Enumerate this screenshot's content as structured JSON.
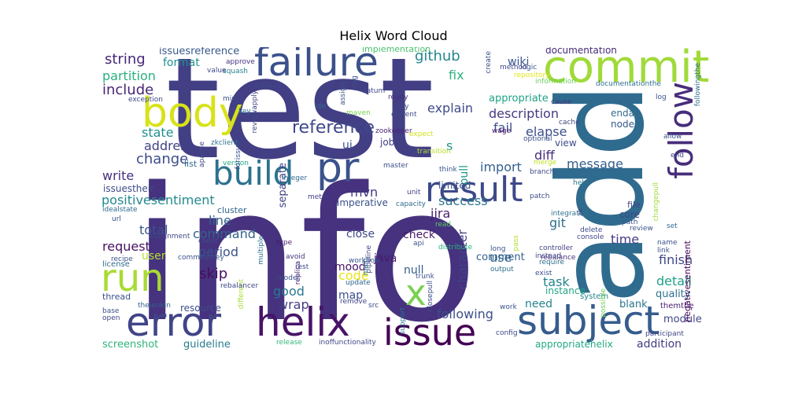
{
  "title": "Helix Word Cloud",
  "words": [
    {
      "text": "info",
      "color": "#46327e"
    },
    {
      "text": "test",
      "color": "#423f85"
    },
    {
      "text": "add",
      "color": "#2f6b8e"
    },
    {
      "text": "commit",
      "color": "#a0da39"
    },
    {
      "text": "failure",
      "color": "#3b518b"
    },
    {
      "text": "body",
      "color": "#d8e219"
    },
    {
      "text": "run",
      "color": "#a8db34"
    },
    {
      "text": "error",
      "color": "#414487"
    },
    {
      "text": "helix",
      "color": "#481467"
    },
    {
      "text": "subject",
      "color": "#365c8d"
    },
    {
      "text": "issue",
      "color": "#440154"
    },
    {
      "text": "result",
      "color": "#3e4989"
    },
    {
      "text": "build",
      "color": "#2c728e"
    },
    {
      "text": "pr",
      "color": "#3b528b"
    },
    {
      "text": "x",
      "color": "#7ad151"
    },
    {
      "text": "follow",
      "color": "#472d7b"
    },
    {
      "text": "reference",
      "color": "#3f4889"
    },
    {
      "text": "string",
      "color": "#482878"
    },
    {
      "text": "github",
      "color": "#24868e"
    },
    {
      "text": "documentation",
      "color": "#472a7a"
    },
    {
      "text": "include",
      "color": "#482475"
    },
    {
      "text": "partition",
      "color": "#2ab07f"
    },
    {
      "text": "state",
      "color": "#21908d"
    },
    {
      "text": "address",
      "color": "#414287"
    },
    {
      "text": "change",
      "color": "#3e4c8a"
    },
    {
      "text": "write",
      "color": "#46307e"
    },
    {
      "text": "positivesentiment",
      "color": "#23898e"
    },
    {
      "text": "description",
      "color": "#443a83"
    },
    {
      "text": "explain",
      "color": "#3e4a89"
    },
    {
      "text": "appropriate",
      "color": "#1fa287"
    },
    {
      "text": "fix",
      "color": "#2db27d"
    },
    {
      "text": "fail",
      "color": "#3d4e8a"
    },
    {
      "text": "elapse",
      "color": "#3c508b"
    },
    {
      "text": "diff",
      "color": "#472c7a"
    },
    {
      "text": "message",
      "color": "#34608d"
    },
    {
      "text": "import",
      "color": "#355f8d"
    },
    {
      "text": "success",
      "color": "#2b748e"
    },
    {
      "text": "mvn",
      "color": "#453882"
    },
    {
      "text": "jira",
      "color": "#481f70"
    },
    {
      "text": "git",
      "color": "#2e6f8e"
    },
    {
      "text": "time",
      "color": "#443b84"
    },
    {
      "text": "finish",
      "color": "#3f4788"
    },
    {
      "text": "detail",
      "color": "#1fa088"
    },
    {
      "text": "line",
      "color": "#32658e"
    },
    {
      "text": "total",
      "color": "#3a548c"
    },
    {
      "text": "command",
      "color": "#33628d"
    },
    {
      "text": "request",
      "color": "#471063"
    },
    {
      "text": "period",
      "color": "#3b528b"
    },
    {
      "text": "skip",
      "color": "#470d60"
    },
    {
      "text": "user",
      "color": "#b5de2b"
    },
    {
      "text": "code",
      "color": "#e7e419"
    },
    {
      "text": "use",
      "color": "#31688e"
    },
    {
      "text": "comment",
      "color": "#355e8d"
    },
    {
      "text": "task",
      "color": "#25838e"
    },
    {
      "text": "quality",
      "color": "#2c738e"
    },
    {
      "text": "module",
      "color": "#404688"
    },
    {
      "text": "good",
      "color": "#2a788e"
    },
    {
      "text": "wrap",
      "color": "#433e85"
    },
    {
      "text": "following",
      "color": "#3c4f8a"
    },
    {
      "text": "character",
      "color": "#414487"
    },
    {
      "text": "check",
      "color": "#48186a"
    },
    {
      "text": "close",
      "color": "#3f4889"
    },
    {
      "text": "mood",
      "color": "#471365"
    },
    {
      "text": "java",
      "color": "#481b6d"
    },
    {
      "text": "null",
      "color": "#365d8d"
    },
    {
      "text": "map",
      "color": "#3d4d8a"
    },
    {
      "text": "need",
      "color": "#26828e"
    },
    {
      "text": "addition",
      "color": "#433d84"
    },
    {
      "text": "guideline",
      "color": "#287c8e"
    },
    {
      "text": "screenshot",
      "color": "#2fb47c"
    },
    {
      "text": "appropriatehelix",
      "color": "#23a983"
    },
    {
      "text": "resource",
      "color": "#3d4e8a"
    },
    {
      "text": "format",
      "color": "#21918c"
    },
    {
      "text": "wiki",
      "color": "#3a548c"
    },
    {
      "text": "issuesreference",
      "color": "#38598c"
    },
    {
      "text": "implementation",
      "color": "#4ac16d"
    },
    {
      "text": "separate",
      "color": "#424186"
    },
    {
      "text": "ui",
      "color": "#3b528b"
    },
    {
      "text": "s",
      "color": "#1f958b"
    },
    {
      "text": "pull",
      "color": "#1e9b8a"
    },
    {
      "text": "view",
      "color": "#3e4c8a"
    },
    {
      "text": "node",
      "color": "#37598c"
    },
    {
      "text": "enda",
      "color": "#306a8e"
    },
    {
      "text": "job",
      "color": "#433e85"
    },
    {
      "text": "limited",
      "color": "#3a538b"
    },
    {
      "text": "imperative",
      "color": "#3b518b"
    },
    {
      "text": "core",
      "color": "#3e4989"
    },
    {
      "text": "blank",
      "color": "#2b758e"
    },
    {
      "text": "instance",
      "color": "#20a486"
    },
    {
      "text": "issuestheir",
      "color": "#3e4a89"
    },
    {
      "text": "list",
      "color": "#2f6c8e"
    },
    {
      "text": "cluster",
      "color": "#32658e"
    },
    {
      "text": "thread",
      "color": "#3b518b"
    },
    {
      "text": "license",
      "color": "#30698e"
    },
    {
      "text": "system",
      "color": "#25848e"
    },
    {
      "text": "negativesentiment",
      "color": "#440154"
    },
    {
      "text": "themthe",
      "color": "#482071"
    },
    {
      "text": "file",
      "color": "#3f4788"
    },
    {
      "text": "rebalance",
      "color": "#472f7d"
    },
    {
      "text": "integration",
      "color": "#2c718e"
    },
    {
      "text": "review",
      "color": "#3a548c"
    },
    {
      "text": "path",
      "color": "#3b528b"
    },
    {
      "text": "help",
      "color": "#2a788e"
    },
    {
      "text": "approve",
      "color": "#46337e"
    },
    {
      "text": "squash",
      "color": "#26828e"
    },
    {
      "text": "value",
      "color": "#3e4989"
    },
    {
      "text": "exception",
      "color": "#3e4989"
    },
    {
      "text": "min",
      "color": "#3b528b"
    },
    {
      "text": "key",
      "color": "#2d708e"
    },
    {
      "text": "number",
      "color": "#404588"
    },
    {
      "text": "ide",
      "color": "#31688e"
    },
    {
      "text": "maven",
      "color": "#7ad151"
    },
    {
      "text": "zookeeper",
      "color": "#482475"
    },
    {
      "text": "update",
      "color": "#31688e"
    },
    {
      "text": "version",
      "color": "#22a884"
    },
    {
      "text": "integer",
      "color": "#2e6e8e"
    },
    {
      "text": "datum",
      "color": "#3f4889"
    },
    {
      "text": "ready",
      "color": "#46307e"
    },
    {
      "text": "expect",
      "color": "#d2e21b"
    },
    {
      "text": "think",
      "color": "#3a548c"
    },
    {
      "text": "master",
      "color": "#3c4f8a"
    },
    {
      "text": "unit",
      "color": "#404688"
    },
    {
      "text": "capacity",
      "color": "#2f6b8e"
    },
    {
      "text": "metric",
      "color": "#423f85"
    },
    {
      "text": "transition",
      "color": "#b5de2b"
    },
    {
      "text": "logic",
      "color": "#3b528b"
    },
    {
      "text": "method",
      "color": "#3e4a89"
    },
    {
      "text": "repository",
      "color": "#e2e418"
    },
    {
      "text": "information",
      "color": "#6ccd5a"
    },
    {
      "text": "documentationthe",
      "color": "#2e6f8e"
    },
    {
      "text": "log",
      "color": "#3b528b"
    },
    {
      "text": "cause",
      "color": "#453781"
    },
    {
      "text": "cache",
      "color": "#3f4788"
    },
    {
      "text": "wage",
      "color": "#481769"
    },
    {
      "text": "optional",
      "color": "#3c4f8a"
    },
    {
      "text": "merge",
      "color": "#c0df25"
    },
    {
      "text": "branch",
      "color": "#3e4a89"
    },
    {
      "text": "patch",
      "color": "#3d4d8a"
    },
    {
      "text": "allow",
      "color": "#3a548c"
    },
    {
      "text": "end",
      "color": "#404688"
    },
    {
      "text": "link",
      "color": "#3b528b"
    },
    {
      "text": "name",
      "color": "#3b528b"
    },
    {
      "text": "set",
      "color": "#2f6c8e"
    },
    {
      "text": "console",
      "color": "#404688"
    },
    {
      "text": "participant",
      "color": "#414487"
    },
    {
      "text": "possible",
      "color": "#6ccd5a"
    },
    {
      "text": "delete",
      "color": "#3e4c8a"
    },
    {
      "text": "controller",
      "color": "#423f85"
    },
    {
      "text": "instead",
      "color": "#404588"
    },
    {
      "text": "require",
      "color": "#2e6e8e"
    },
    {
      "text": "exist",
      "color": "#3b528b"
    },
    {
      "text": "output",
      "color": "#2d708e"
    },
    {
      "text": "work",
      "color": "#3a548c"
    },
    {
      "text": "long",
      "color": "#3b528b"
    },
    {
      "text": "pass",
      "color": "#b5de2b"
    },
    {
      "text": "config",
      "color": "#3e4989"
    },
    {
      "text": "support",
      "color": "#2c728e"
    },
    {
      "text": "src",
      "color": "#3e4a89"
    },
    {
      "text": "remove",
      "color": "#404688"
    },
    {
      "text": "pipeline",
      "color": "#3f4889"
    },
    {
      "text": "read",
      "color": "#5ec962"
    },
    {
      "text": "api",
      "color": "#3b528b"
    },
    {
      "text": "distribute",
      "color": "#2ab07f"
    },
    {
      "text": "workflow",
      "color": "#3a548c"
    },
    {
      "text": "trunk",
      "color": "#3b528b"
    },
    {
      "text": "main",
      "color": "#2f6c8e"
    },
    {
      "text": "closepull",
      "color": "#3e4a89"
    },
    {
      "text": "avoid",
      "color": "#46307e"
    },
    {
      "text": "rest",
      "color": "#3e4c8a"
    },
    {
      "text": "type",
      "color": "#481a6c"
    },
    {
      "text": "replica",
      "color": "#482475"
    },
    {
      "text": "model",
      "color": "#3b518b"
    },
    {
      "text": "different",
      "color": "#a8db34"
    },
    {
      "text": "multiple",
      "color": "#2e6f8e"
    },
    {
      "text": "release",
      "color": "#35b779"
    },
    {
      "text": "inoffunctionality",
      "color": "#3f4889"
    },
    {
      "text": "rebalancer",
      "color": "#3f4788"
    },
    {
      "text": "thejenkin",
      "color": "#34608d"
    },
    {
      "text": "assignment",
      "color": "#3e4989"
    },
    {
      "text": "recipe",
      "color": "#3b528b"
    },
    {
      "text": "commitsthey",
      "color": "#3a548c"
    },
    {
      "text": "client",
      "color": "#3c4f8a"
    },
    {
      "text": "url",
      "color": "#3b528b"
    },
    {
      "text": "idealstate",
      "color": "#2f6c8e"
    },
    {
      "text": "base",
      "color": "#3b528b"
    },
    {
      "text": "open",
      "color": "#3f4788"
    },
    {
      "text": "zkclient",
      "color": "#2c738e"
    },
    {
      "text": "apache",
      "color": "#3e4a89"
    },
    {
      "text": "forissue",
      "color": "#3b528b"
    },
    {
      "text": "reviewapply",
      "color": "#3f4889"
    },
    {
      "text": "assign",
      "color": "#3b528b"
    },
    {
      "text": "org",
      "color": "#3c4f8a"
    },
    {
      "text": "copy",
      "color": "#3e4989"
    },
    {
      "text": "current",
      "color": "#3e4a89"
    },
    {
      "text": "create",
      "color": "#3b528b"
    },
    {
      "text": "zk",
      "color": "#3f4788"
    },
    {
      "text": "changepull",
      "color": "#a0da39"
    },
    {
      "text": "followingthe",
      "color": "#2f6c8e"
    }
  ]
}
